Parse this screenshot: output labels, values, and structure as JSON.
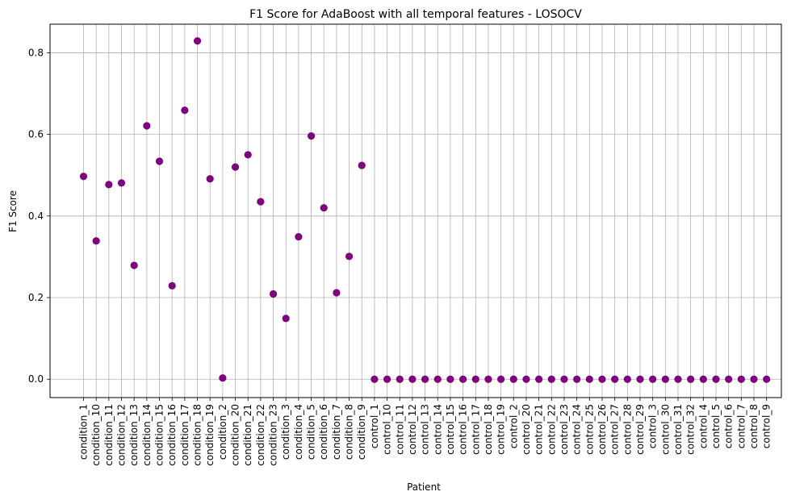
{
  "chart_data": {
    "type": "scatter",
    "title": "F1 Score for AdaBoost with all temporal features - LOSOCV",
    "xlabel": "Patient",
    "ylabel": "F1 Score",
    "ylim": [
      -0.045,
      0.87
    ],
    "yticks": [
      0.0,
      0.2,
      0.4,
      0.6,
      0.8
    ],
    "ytick_labels": [
      "0.0",
      "0.2",
      "0.4",
      "0.6",
      "0.8"
    ],
    "grid": true,
    "marker_color": "#800080",
    "categories": [
      "condition_1",
      "condition_10",
      "condition_11",
      "condition_12",
      "condition_13",
      "condition_14",
      "condition_15",
      "condition_16",
      "condition_17",
      "condition_18",
      "condition_19",
      "condition_2",
      "condition_20",
      "condition_21",
      "condition_22",
      "condition_23",
      "condition_3",
      "condition_4",
      "condition_5",
      "condition_6",
      "condition_7",
      "condition_8",
      "condition_9",
      "control_1",
      "control_10",
      "control_11",
      "control_12",
      "control_13",
      "control_14",
      "control_15",
      "control_16",
      "control_17",
      "control_18",
      "control_19",
      "control_2",
      "control_20",
      "control_21",
      "control_22",
      "control_23",
      "control_24",
      "control_25",
      "control_26",
      "control_27",
      "control_28",
      "control_29",
      "control_3",
      "control_30",
      "control_31",
      "control_32",
      "control_4",
      "control_5",
      "control_6",
      "control_7",
      "control_8",
      "control_9"
    ],
    "values": [
      0.497,
      0.339,
      0.477,
      0.481,
      0.279,
      0.621,
      0.534,
      0.229,
      0.659,
      0.829,
      0.491,
      0.003,
      0.52,
      0.55,
      0.435,
      0.209,
      0.149,
      0.349,
      0.596,
      0.42,
      0.212,
      0.301,
      0.524,
      0,
      0,
      0,
      0,
      0,
      0,
      0,
      0,
      0,
      0,
      0,
      0,
      0,
      0,
      0,
      0,
      0,
      0,
      0,
      0,
      0,
      0,
      0,
      0,
      0,
      0,
      0,
      0,
      0,
      0,
      0,
      0
    ]
  }
}
